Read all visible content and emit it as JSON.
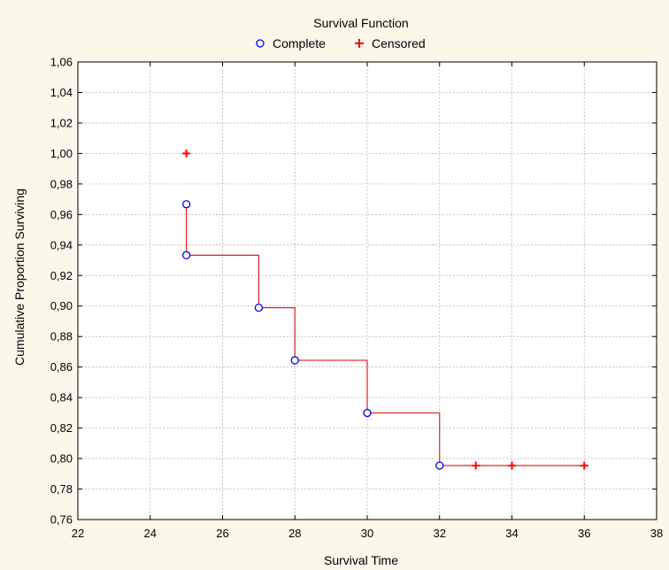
{
  "chart_data": {
    "type": "scatter",
    "title": "Survival Function",
    "xlabel": "Survival Time",
    "ylabel": "Cumulative Proportion Surviving",
    "xlim": [
      22,
      38
    ],
    "ylim": [
      0.76,
      1.06
    ],
    "x_ticks": [
      22,
      24,
      26,
      28,
      30,
      32,
      34,
      36,
      38
    ],
    "y_ticks": [
      0.76,
      0.78,
      0.8,
      0.82,
      0.84,
      0.86,
      0.88,
      0.9,
      0.92,
      0.94,
      0.96,
      0.98,
      1.0,
      1.02,
      1.04,
      1.06
    ],
    "x_tick_labels": [
      "22",
      "24",
      "26",
      "28",
      "30",
      "32",
      "34",
      "36",
      "38"
    ],
    "y_tick_labels": [
      "0,76",
      "0,78",
      "0,80",
      "0,82",
      "0,84",
      "0,86",
      "0,88",
      "0,90",
      "0,92",
      "0,94",
      "0,96",
      "0,98",
      "1,00",
      "1,02",
      "1,04",
      "1,06"
    ],
    "grid": true,
    "legend_position": "top-center",
    "series": [
      {
        "name": "Complete",
        "marker": "open-circle",
        "color": "#0000ff",
        "points": [
          {
            "x": 25,
            "y": 0.9667
          },
          {
            "x": 25,
            "y": 0.9333
          },
          {
            "x": 27,
            "y": 0.8989
          },
          {
            "x": 28,
            "y": 0.8644
          },
          {
            "x": 30,
            "y": 0.8299
          },
          {
            "x": 32,
            "y": 0.7954
          }
        ]
      },
      {
        "name": "Censored",
        "marker": "plus",
        "color": "#ff0000",
        "points": [
          {
            "x": 25,
            "y": 1.0
          },
          {
            "x": 33,
            "y": 0.7954
          },
          {
            "x": 34,
            "y": 0.7954
          },
          {
            "x": 36,
            "y": 0.7954
          }
        ]
      }
    ],
    "step_line": {
      "color": "#e02020",
      "points": [
        {
          "x": 25,
          "y": 0.9667
        },
        {
          "x": 25,
          "y": 0.9333
        },
        {
          "x": 27,
          "y": 0.9333
        },
        {
          "x": 27,
          "y": 0.8989
        },
        {
          "x": 28,
          "y": 0.8989
        },
        {
          "x": 28,
          "y": 0.8644
        },
        {
          "x": 30,
          "y": 0.8644
        },
        {
          "x": 30,
          "y": 0.8299
        },
        {
          "x": 32,
          "y": 0.8299
        },
        {
          "x": 32,
          "y": 0.7954
        },
        {
          "x": 36,
          "y": 0.7954
        }
      ]
    }
  }
}
